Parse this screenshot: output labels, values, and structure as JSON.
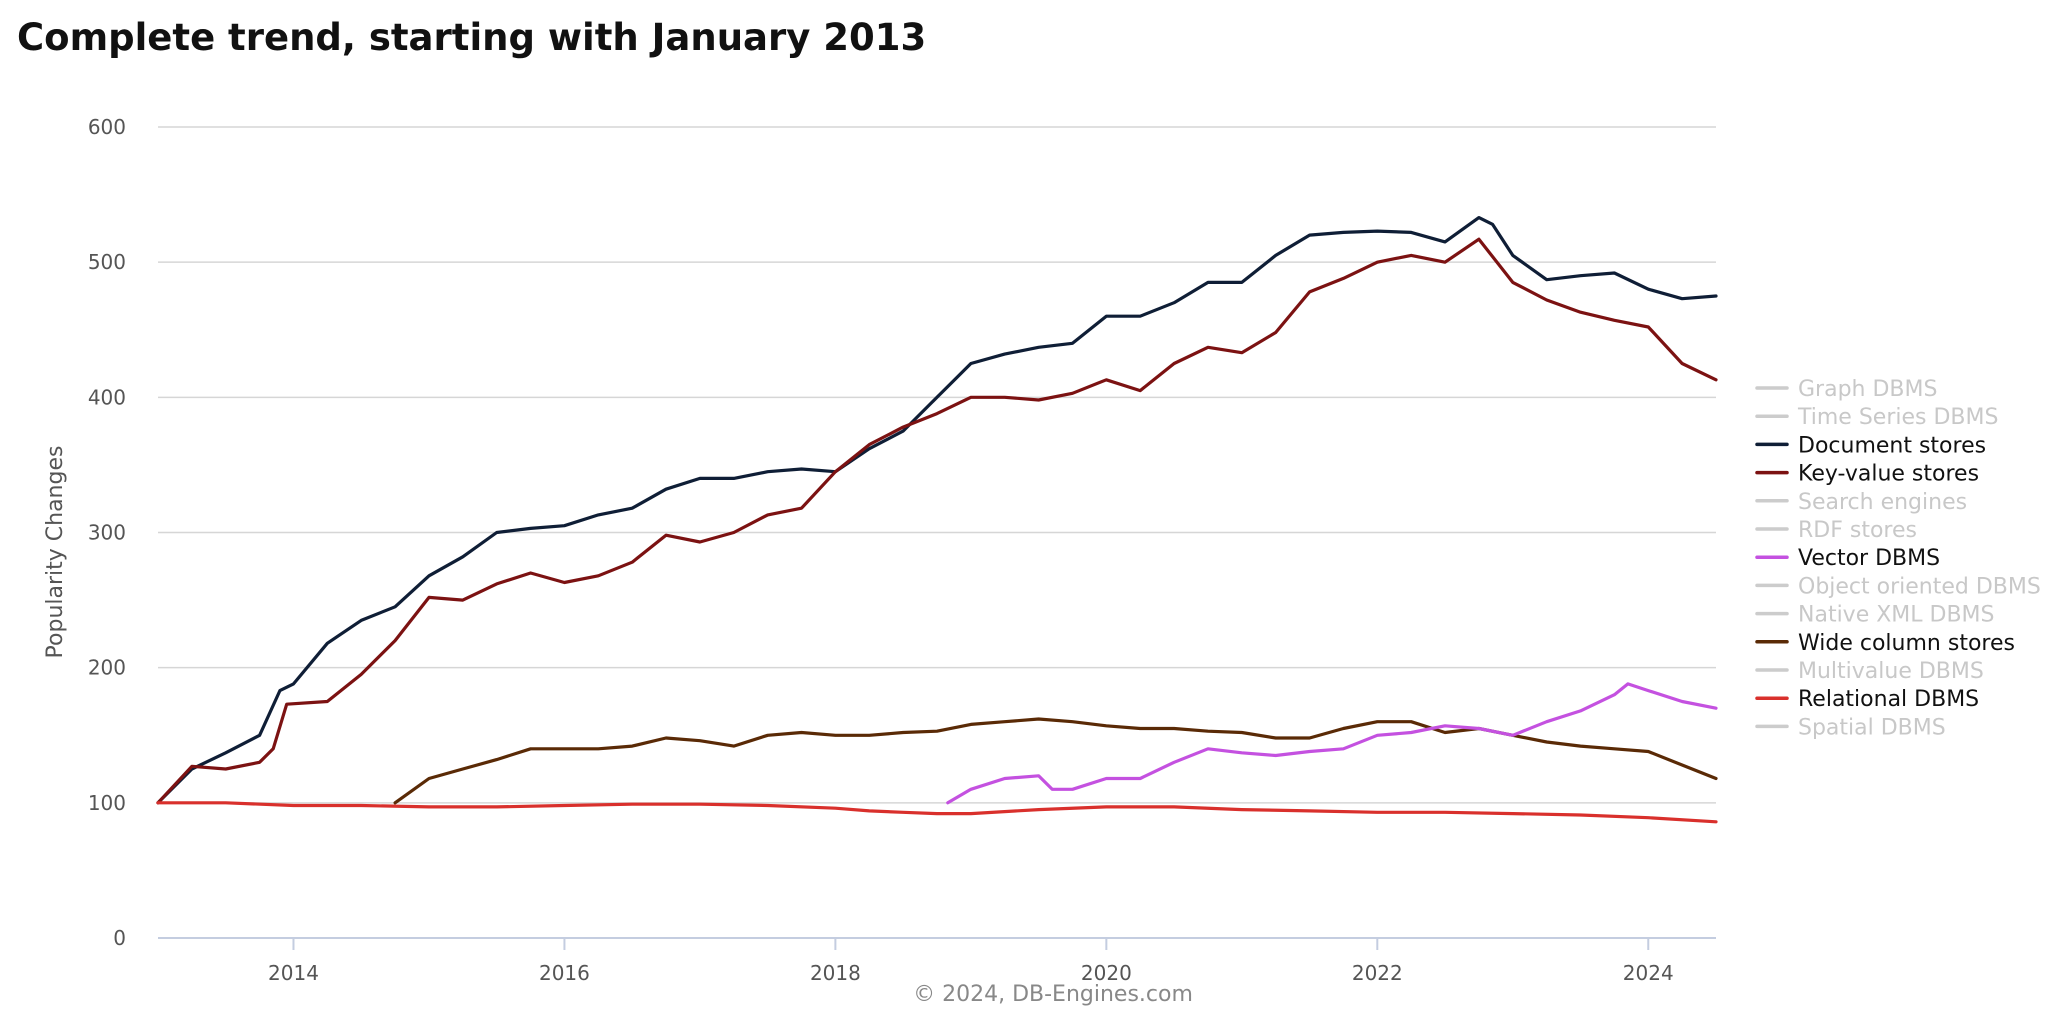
{
  "page": {
    "title": "Complete trend, starting with January 2013",
    "credit": "© 2024, DB-Engines.com"
  },
  "chart_data": {
    "type": "line",
    "title": "Complete trend, starting with January 2013",
    "xlabel": "",
    "ylabel": "Popularity Changes",
    "xlim": [
      2013.0,
      2024.5
    ],
    "ylim": [
      0,
      600
    ],
    "x_ticks": [
      2014,
      2016,
      2018,
      2020,
      2022,
      2024
    ],
    "y_ticks": [
      0,
      100,
      200,
      300,
      400,
      500,
      600
    ],
    "grid": true,
    "legend_position": "right",
    "credit": "© 2024, DB-Engines.com",
    "legend": [
      {
        "name": "Graph DBMS",
        "color": "#cccccc",
        "visible": false
      },
      {
        "name": "Time Series DBMS",
        "color": "#cccccc",
        "visible": false
      },
      {
        "name": "Document stores",
        "color": "#0f1e36",
        "visible": true
      },
      {
        "name": "Key-value stores",
        "color": "#7c1212",
        "visible": true
      },
      {
        "name": "Search engines",
        "color": "#cccccc",
        "visible": false
      },
      {
        "name": "RDF stores",
        "color": "#cccccc",
        "visible": false
      },
      {
        "name": "Vector DBMS",
        "color": "#c451e0",
        "visible": true
      },
      {
        "name": "Object oriented DBMS",
        "color": "#cccccc",
        "visible": false
      },
      {
        "name": "Native XML DBMS",
        "color": "#cccccc",
        "visible": false
      },
      {
        "name": "Wide column stores",
        "color": "#5a2a06",
        "visible": true
      },
      {
        "name": "Multivalue DBMS",
        "color": "#cccccc",
        "visible": false
      },
      {
        "name": "Relational DBMS",
        "color": "#d9302c",
        "visible": true
      },
      {
        "name": "Spatial DBMS",
        "color": "#cccccc",
        "visible": false
      }
    ],
    "series": [
      {
        "name": "Document stores",
        "color": "#0f1e36",
        "x": [
          2013.0,
          2013.25,
          2013.5,
          2013.75,
          2013.9,
          2014.0,
          2014.25,
          2014.5,
          2014.75,
          2015.0,
          2015.25,
          2015.5,
          2015.75,
          2016.0,
          2016.25,
          2016.5,
          2016.75,
          2017.0,
          2017.25,
          2017.5,
          2017.75,
          2018.0,
          2018.25,
          2018.5,
          2018.75,
          2019.0,
          2019.25,
          2019.5,
          2019.75,
          2020.0,
          2020.25,
          2020.5,
          2020.75,
          2021.0,
          2021.25,
          2021.5,
          2021.75,
          2022.0,
          2022.25,
          2022.5,
          2022.75,
          2022.85,
          2023.0,
          2023.25,
          2023.5,
          2023.75,
          2024.0,
          2024.25,
          2024.5
        ],
        "values": [
          100,
          125,
          137,
          150,
          183,
          188,
          218,
          235,
          245,
          268,
          282,
          300,
          303,
          305,
          313,
          318,
          332,
          340,
          340,
          345,
          347,
          345,
          362,
          375,
          400,
          425,
          432,
          437,
          440,
          460,
          460,
          470,
          485,
          485,
          505,
          520,
          522,
          523,
          522,
          515,
          533,
          528,
          505,
          487,
          490,
          492,
          480,
          473,
          475
        ]
      },
      {
        "name": "Key-value stores",
        "color": "#7c1212",
        "x": [
          2013.0,
          2013.25,
          2013.5,
          2013.75,
          2013.85,
          2013.95,
          2014.25,
          2014.5,
          2014.75,
          2015.0,
          2015.25,
          2015.5,
          2015.75,
          2016.0,
          2016.25,
          2016.5,
          2016.75,
          2017.0,
          2017.25,
          2017.5,
          2017.75,
          2018.0,
          2018.25,
          2018.5,
          2018.75,
          2019.0,
          2019.25,
          2019.5,
          2019.75,
          2020.0,
          2020.25,
          2020.5,
          2020.75,
          2021.0,
          2021.25,
          2021.5,
          2021.75,
          2022.0,
          2022.25,
          2022.5,
          2022.75,
          2023.0,
          2023.25,
          2023.5,
          2023.75,
          2024.0,
          2024.25,
          2024.5
        ],
        "values": [
          100,
          127,
          125,
          130,
          140,
          173,
          175,
          195,
          220,
          252,
          250,
          262,
          270,
          263,
          268,
          278,
          298,
          293,
          300,
          313,
          318,
          345,
          365,
          378,
          388,
          400,
          400,
          398,
          403,
          413,
          405,
          425,
          437,
          433,
          448,
          478,
          488,
          500,
          505,
          500,
          517,
          485,
          472,
          463,
          457,
          452,
          425,
          413
        ]
      },
      {
        "name": "Wide column stores",
        "color": "#5a2a06",
        "x": [
          2014.75,
          2015.0,
          2015.25,
          2015.5,
          2015.75,
          2016.0,
          2016.25,
          2016.5,
          2016.75,
          2017.0,
          2017.25,
          2017.5,
          2017.75,
          2018.0,
          2018.25,
          2018.5,
          2018.75,
          2019.0,
          2019.25,
          2019.5,
          2019.75,
          2020.0,
          2020.25,
          2020.5,
          2020.75,
          2021.0,
          2021.25,
          2021.5,
          2021.75,
          2022.0,
          2022.25,
          2022.5,
          2022.75,
          2023.0,
          2023.25,
          2023.5,
          2023.75,
          2024.0,
          2024.25,
          2024.5
        ],
        "values": [
          100,
          118,
          125,
          132,
          140,
          140,
          140,
          142,
          148,
          146,
          142,
          150,
          152,
          150,
          150,
          152,
          153,
          158,
          160,
          162,
          160,
          157,
          155,
          155,
          153,
          152,
          148,
          148,
          155,
          160,
          160,
          152,
          155,
          150,
          145,
          142,
          140,
          138,
          128,
          118
        ]
      },
      {
        "name": "Vector DBMS",
        "color": "#c451e0",
        "x": [
          2018.83,
          2019.0,
          2019.25,
          2019.5,
          2019.6,
          2019.75,
          2020.0,
          2020.25,
          2020.5,
          2020.75,
          2021.0,
          2021.25,
          2021.5,
          2021.75,
          2022.0,
          2022.25,
          2022.5,
          2022.75,
          2023.0,
          2023.25,
          2023.5,
          2023.75,
          2023.85,
          2024.0,
          2024.25,
          2024.5
        ],
        "values": [
          100,
          110,
          118,
          120,
          110,
          110,
          118,
          118,
          130,
          140,
          137,
          135,
          138,
          140,
          150,
          152,
          157,
          155,
          150,
          160,
          168,
          180,
          188,
          183,
          175,
          170
        ]
      },
      {
        "name": "Relational DBMS",
        "color": "#d9302c",
        "x": [
          2013.0,
          2013.5,
          2014.0,
          2014.5,
          2015.0,
          2015.5,
          2016.0,
          2016.5,
          2017.0,
          2017.5,
          2018.0,
          2018.25,
          2018.5,
          2018.75,
          2019.0,
          2019.5,
          2020.0,
          2020.5,
          2021.0,
          2021.5,
          2022.0,
          2022.5,
          2023.0,
          2023.5,
          2024.0,
          2024.5
        ],
        "values": [
          100,
          100,
          98,
          98,
          97,
          97,
          98,
          99,
          99,
          98,
          96,
          94,
          93,
          92,
          92,
          95,
          97,
          97,
          95,
          94,
          93,
          93,
          92,
          91,
          89,
          86
        ]
      }
    ]
  }
}
